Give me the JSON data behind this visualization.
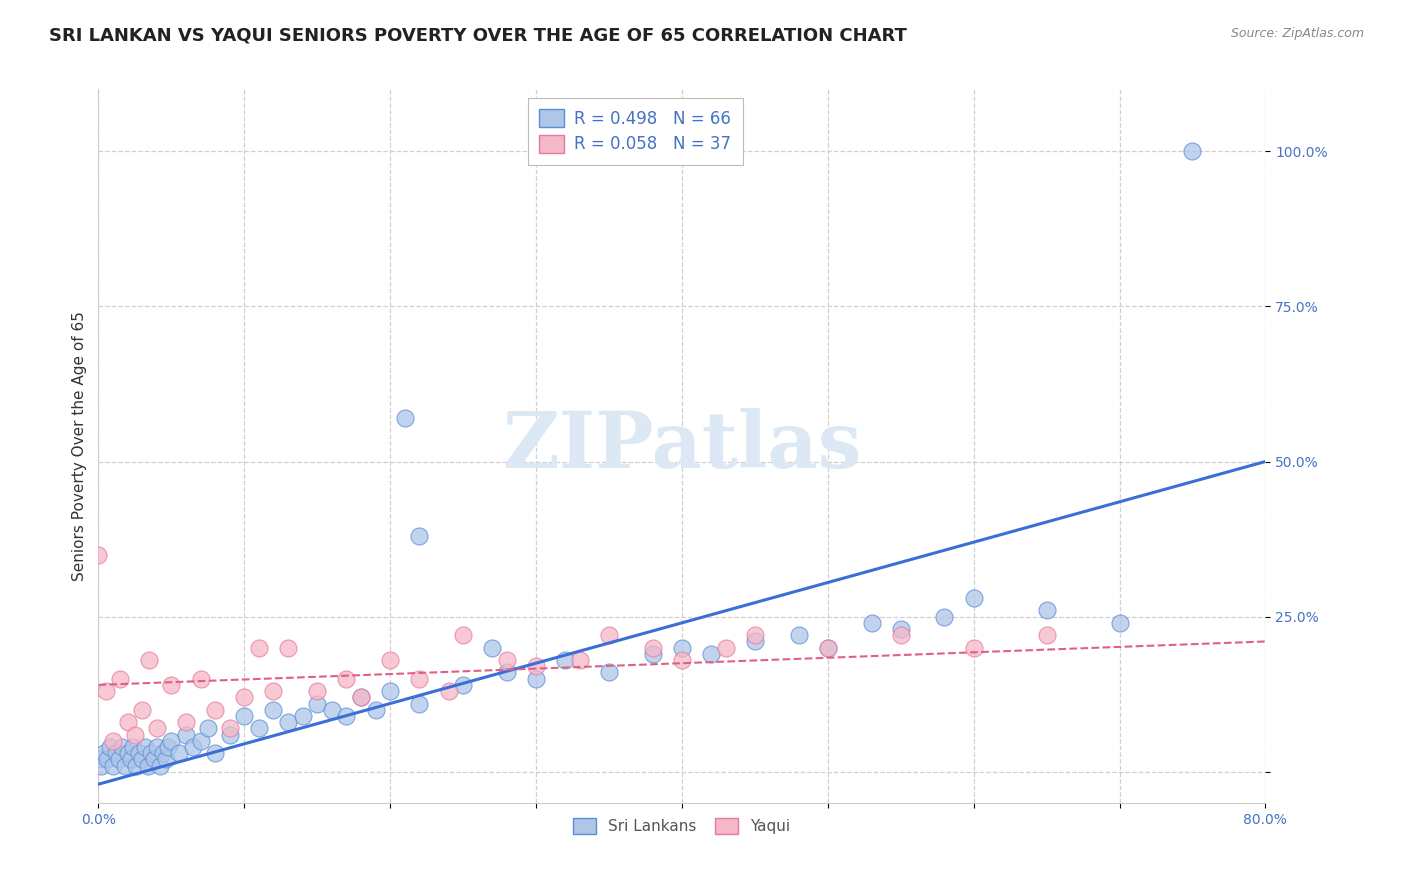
{
  "title": "SRI LANKAN VS YAQUI SENIORS POVERTY OVER THE AGE OF 65 CORRELATION CHART",
  "source": "Source: ZipAtlas.com",
  "ylabel": "Seniors Poverty Over the Age of 65",
  "xlim": [
    0.0,
    0.8
  ],
  "ylim": [
    -0.05,
    1.1
  ],
  "xticks": [
    0.0,
    0.1,
    0.2,
    0.3,
    0.4,
    0.5,
    0.6,
    0.7,
    0.8
  ],
  "xticklabels": [
    "0.0%",
    "",
    "",
    "",
    "",
    "",
    "",
    "",
    "80.0%"
  ],
  "ytick_positions": [
    0.0,
    0.25,
    0.5,
    0.75,
    1.0
  ],
  "ytick_labels": [
    "",
    "25.0%",
    "50.0%",
    "75.0%",
    "100.0%"
  ],
  "sri_lankan_color": "#aec6e8",
  "yaqui_color": "#f4b8c8",
  "sri_lankan_edge_color": "#5b8dd9",
  "yaqui_edge_color": "#e878a0",
  "sri_lankan_line_color": "#3a6fd8",
  "yaqui_line_color": "#e06080",
  "background_color": "#ffffff",
  "grid_color": "#d0d0d0",
  "legend_R_sri": "R = 0.498",
  "legend_N_sri": "N = 66",
  "legend_R_yaqui": "R = 0.058",
  "legend_N_yaqui": "N = 37",
  "tick_color": "#4472c4",
  "title_color": "#222222",
  "ylabel_color": "#333333",
  "source_color": "#888888",
  "watermark_color": "#dde8f5",
  "sri_lankan_scatter_x": [
    0.0,
    0.002,
    0.004,
    0.006,
    0.008,
    0.01,
    0.012,
    0.014,
    0.016,
    0.018,
    0.02,
    0.022,
    0.024,
    0.026,
    0.028,
    0.03,
    0.032,
    0.034,
    0.036,
    0.038,
    0.04,
    0.042,
    0.044,
    0.046,
    0.048,
    0.05,
    0.055,
    0.06,
    0.065,
    0.07,
    0.075,
    0.08,
    0.09,
    0.1,
    0.11,
    0.12,
    0.13,
    0.14,
    0.15,
    0.16,
    0.17,
    0.18,
    0.19,
    0.2,
    0.21,
    0.22,
    0.25,
    0.28,
    0.3,
    0.32,
    0.35,
    0.38,
    0.4,
    0.42,
    0.45,
    0.48,
    0.5,
    0.53,
    0.55,
    0.58,
    0.6,
    0.65,
    0.7,
    0.22,
    0.27,
    0.75
  ],
  "sri_lankan_scatter_y": [
    0.02,
    0.01,
    0.03,
    0.02,
    0.04,
    0.01,
    0.03,
    0.02,
    0.04,
    0.01,
    0.03,
    0.02,
    0.04,
    0.01,
    0.03,
    0.02,
    0.04,
    0.01,
    0.03,
    0.02,
    0.04,
    0.01,
    0.03,
    0.02,
    0.04,
    0.05,
    0.03,
    0.06,
    0.04,
    0.05,
    0.07,
    0.03,
    0.06,
    0.09,
    0.07,
    0.1,
    0.08,
    0.09,
    0.11,
    0.1,
    0.09,
    0.12,
    0.1,
    0.13,
    0.57,
    0.11,
    0.14,
    0.16,
    0.15,
    0.18,
    0.16,
    0.19,
    0.2,
    0.19,
    0.21,
    0.22,
    0.2,
    0.24,
    0.23,
    0.25,
    0.28,
    0.26,
    0.24,
    0.38,
    0.2,
    1.0
  ],
  "yaqui_scatter_x": [
    0.0,
    0.005,
    0.01,
    0.015,
    0.02,
    0.025,
    0.03,
    0.035,
    0.04,
    0.05,
    0.06,
    0.07,
    0.08,
    0.09,
    0.1,
    0.11,
    0.12,
    0.13,
    0.15,
    0.17,
    0.18,
    0.2,
    0.22,
    0.24,
    0.25,
    0.28,
    0.3,
    0.33,
    0.35,
    0.38,
    0.4,
    0.43,
    0.45,
    0.5,
    0.55,
    0.6,
    0.65
  ],
  "yaqui_scatter_y": [
    0.35,
    0.13,
    0.05,
    0.15,
    0.08,
    0.06,
    0.1,
    0.18,
    0.07,
    0.14,
    0.08,
    0.15,
    0.1,
    0.07,
    0.12,
    0.2,
    0.13,
    0.2,
    0.13,
    0.15,
    0.12,
    0.18,
    0.15,
    0.13,
    0.22,
    0.18,
    0.17,
    0.18,
    0.22,
    0.2,
    0.18,
    0.2,
    0.22,
    0.2,
    0.22,
    0.2,
    0.22
  ],
  "sri_line_x": [
    0.0,
    0.8
  ],
  "sri_line_y": [
    -0.02,
    0.5
  ],
  "yaqui_line_x": [
    0.0,
    0.8
  ],
  "yaqui_line_y": [
    0.14,
    0.21
  ],
  "title_fontsize": 13,
  "axis_label_fontsize": 11,
  "tick_fontsize": 10,
  "legend_fontsize": 12,
  "source_fontsize": 9
}
